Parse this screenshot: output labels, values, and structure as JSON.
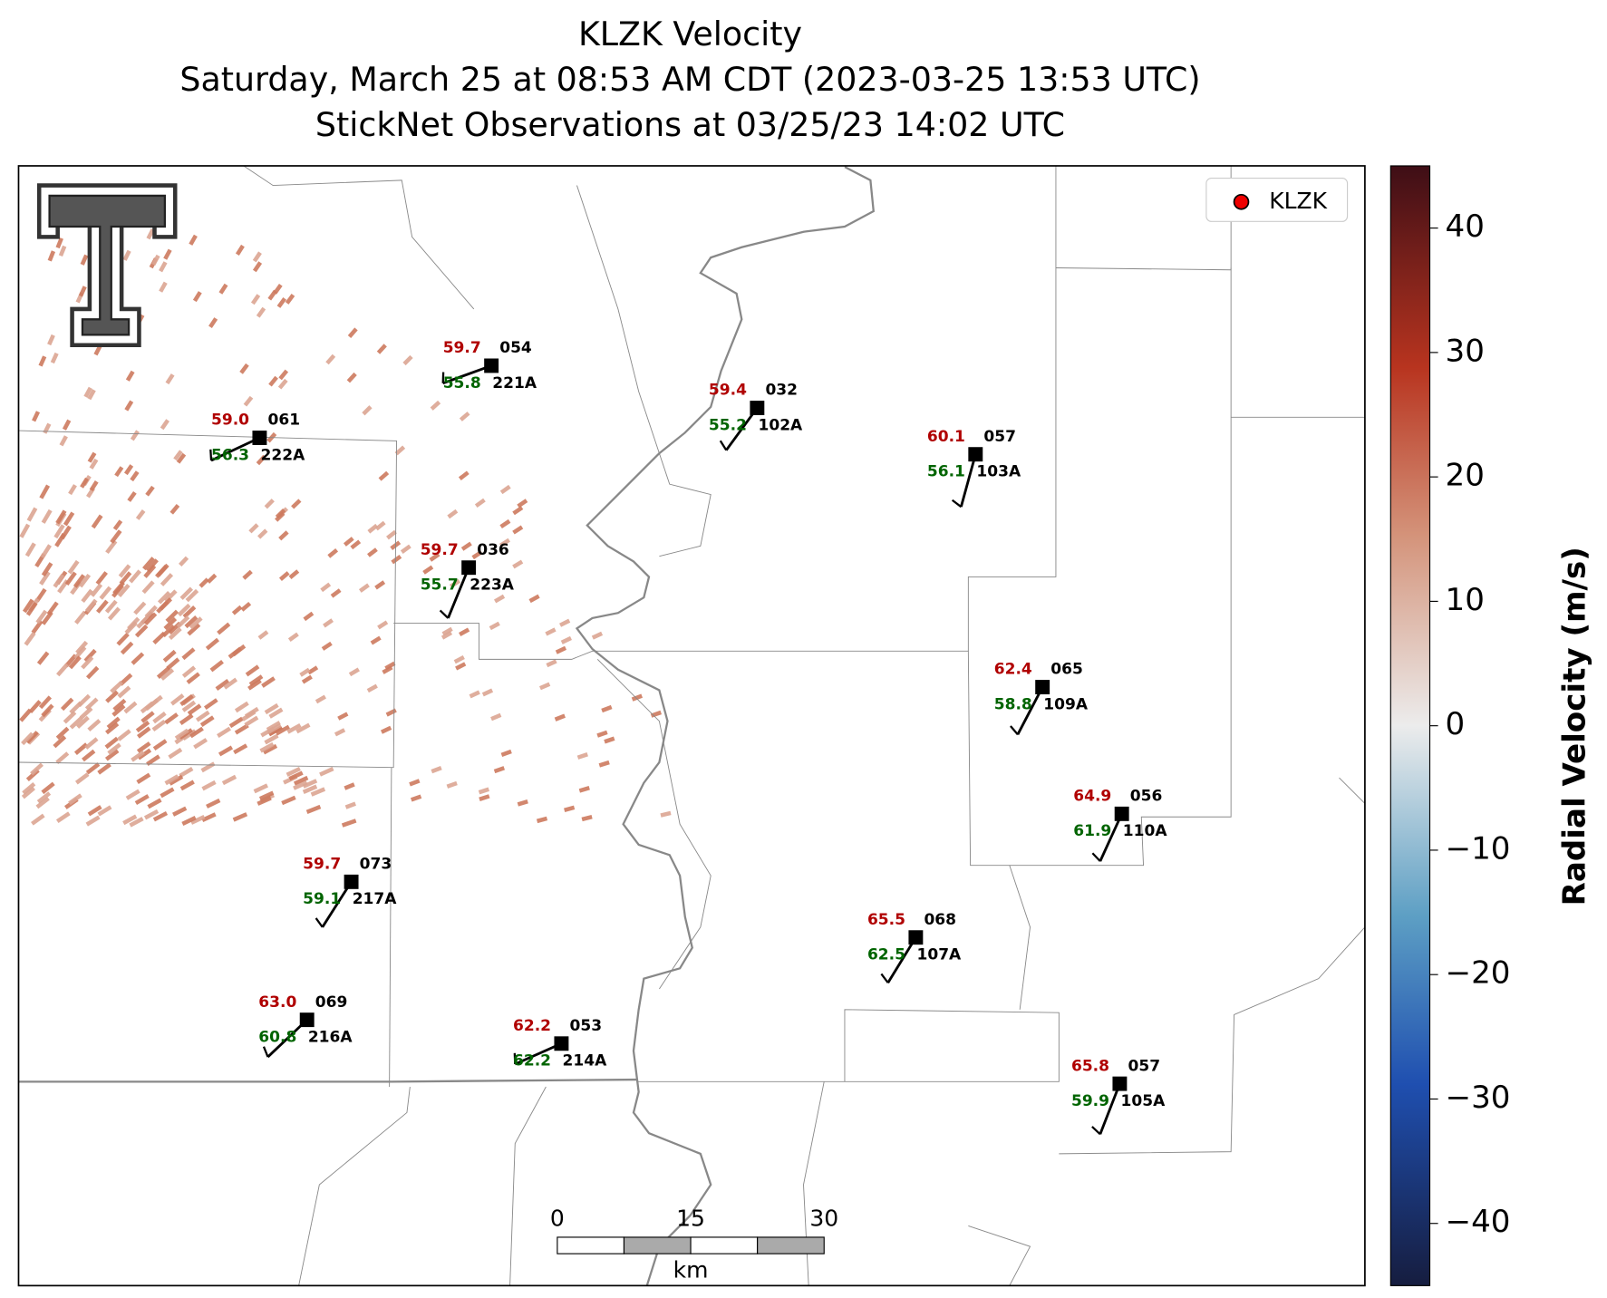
{
  "title": [
    "KLZK Velocity",
    "Saturday, March 25 at 08:53 AM CDT (2023-03-25 13:53 UTC)",
    "StickNet Observations at 03/25/23 14:02 UTC"
  ],
  "legend": "KLZK",
  "colorbar": {
    "label": "Radial Velocity (m/s)",
    "lim": [
      -45,
      45
    ],
    "ticks": [
      {
        "value": -40,
        "label": "−40"
      },
      {
        "value": -30,
        "label": "−30"
      },
      {
        "value": -20,
        "label": "−20"
      },
      {
        "value": -10,
        "label": "−10"
      },
      0,
      10,
      20,
      30,
      40
    ]
  },
  "scale_bar": {
    "ticks": [
      0,
      15,
      30
    ],
    "unit": "km"
  },
  "stations": [
    {
      "id": "221A",
      "temp": "59.7",
      "dewpoint": "55.8",
      "code": "054"
    },
    {
      "id": "222A",
      "temp": "59.0",
      "dewpoint": "56.3",
      "code": "061"
    },
    {
      "id": "102A",
      "temp": "59.4",
      "dewpoint": "55.2",
      "code": "032"
    },
    {
      "id": "103A",
      "temp": "60.1",
      "dewpoint": "56.1",
      "code": "057"
    },
    {
      "id": "223A",
      "temp": "59.7",
      "dewpoint": "55.7",
      "code": "036"
    },
    {
      "id": "109A",
      "temp": "62.4",
      "dewpoint": "58.8",
      "code": "065"
    },
    {
      "id": "110A",
      "temp": "64.9",
      "dewpoint": "61.9",
      "code": "056"
    },
    {
      "id": "217A",
      "temp": "59.7",
      "dewpoint": "59.1",
      "code": "073"
    },
    {
      "id": "107A",
      "temp": "65.5",
      "dewpoint": "62.5",
      "code": "068"
    },
    {
      "id": "216A",
      "temp": "63.0",
      "dewpoint": "60.8",
      "code": "069"
    },
    {
      "id": "214A",
      "temp": "62.2",
      "dewpoint": "62.2",
      "code": "053"
    },
    {
      "id": "105A",
      "temp": "65.8",
      "dewpoint": "59.9",
      "code": "057"
    }
  ]
}
